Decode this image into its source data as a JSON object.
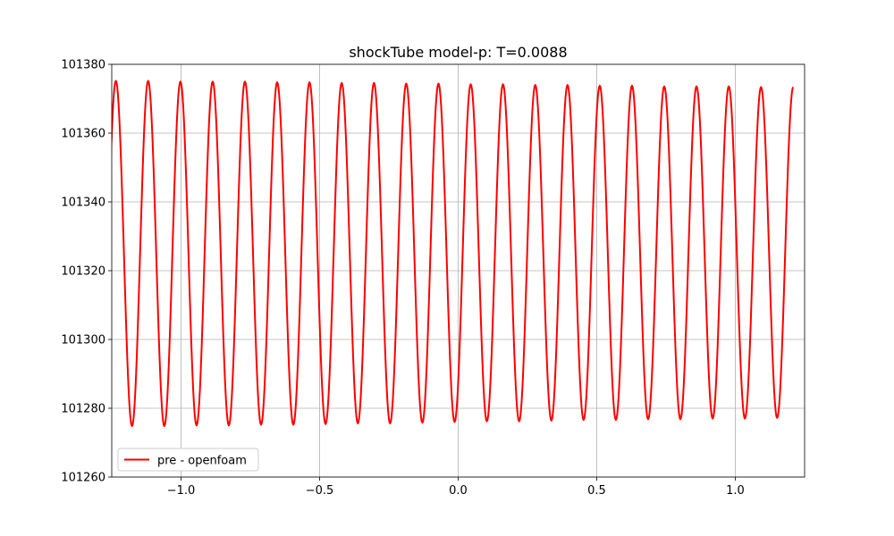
{
  "chart_data": {
    "type": "line",
    "title": "shockTube model-p: T=0.0088",
    "xlabel": "",
    "ylabel": "",
    "xlim": [
      -1.25,
      1.25
    ],
    "ylim": [
      101260,
      101380
    ],
    "xticks": [
      -1.0,
      -0.5,
      0.0,
      0.5,
      1.0
    ],
    "xtick_labels": [
      "−1.0",
      "−0.5",
      "0.0",
      "0.5",
      "1.0"
    ],
    "yticks": [
      101260,
      101280,
      101300,
      101320,
      101340,
      101360,
      101380
    ],
    "ytick_labels": [
      "101260",
      "101280",
      "101300",
      "101320",
      "101340",
      "101360",
      "101380"
    ],
    "grid": true,
    "legend_position": "lower-left",
    "series": [
      {
        "name": "pre - openfoam",
        "color": "#ff0000",
        "waveform": "sinusoidal",
        "x": [
          -1.2351,
          -1.1769,
          -1.1187,
          -1.0603,
          -1.0022,
          -0.944,
          -0.8858,
          -0.8276,
          -0.7694,
          -0.7112,
          -0.6531,
          -0.5948,
          -0.5366,
          -0.4785,
          -0.4203,
          -0.362,
          -0.3038,
          -0.2457,
          -0.1874,
          -0.1292,
          -0.0711,
          -0.0129,
          0.0453,
          0.1035,
          0.1617,
          0.2199,
          0.2781,
          0.3363,
          0.3945,
          0.4526,
          0.5108,
          0.569,
          0.6272,
          0.6854,
          0.7436,
          0.8018,
          0.86,
          0.9182,
          0.9764,
          1.0346,
          1.0928,
          1.1509
        ],
        "y": [
          101375.2,
          101274.8,
          101375.2,
          101274.8,
          101375.0,
          101275.0,
          101375.0,
          101275.0,
          101375.0,
          101275.2,
          101374.8,
          101275.2,
          101374.8,
          101275.4,
          101374.6,
          101275.6,
          101374.6,
          101275.6,
          101374.4,
          101275.8,
          101374.4,
          101276.0,
          101374.2,
          101276.2,
          101374.2,
          101276.2,
          101374.0,
          101276.4,
          101374.0,
          101276.6,
          101373.8,
          101276.6,
          101373.8,
          101276.8,
          101373.6,
          101276.8,
          101373.6,
          101277.0,
          101373.6,
          101277.0,
          101373.4,
          101277.2
        ]
      }
    ]
  }
}
